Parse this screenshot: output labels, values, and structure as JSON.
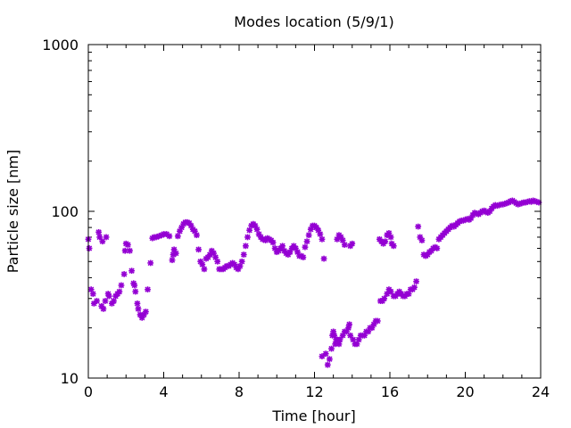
{
  "chart_data": {
    "type": "scatter",
    "title": "Modes location (5/9/1)",
    "xlabel": "Time [hour]",
    "ylabel": "Particle size [nm]",
    "xlim": [
      0,
      24
    ],
    "ylim": [
      10,
      1000
    ],
    "yscale": "log",
    "xticks": [
      0,
      4,
      8,
      12,
      16,
      20,
      24
    ],
    "yticks": [
      10,
      100,
      1000
    ],
    "xtick_labels": [
      "0",
      "4",
      "8",
      "12",
      "16",
      "20",
      "24"
    ],
    "ytick_labels": [
      "10",
      "100",
      "1000"
    ],
    "grid": false,
    "legend": "none",
    "marker_color": "#9400d3",
    "series": [
      {
        "points": [
          [
            0.0,
            68
          ],
          [
            0.05,
            60
          ],
          [
            0.15,
            34
          ],
          [
            0.25,
            32
          ],
          [
            0.3,
            28
          ],
          [
            0.45,
            29
          ],
          [
            0.55,
            75
          ],
          [
            0.6,
            70
          ],
          [
            0.7,
            27
          ],
          [
            0.75,
            66
          ],
          [
            0.8,
            26
          ],
          [
            0.9,
            29
          ],
          [
            0.95,
            70
          ],
          [
            1.05,
            32
          ],
          [
            1.1,
            31
          ],
          [
            1.25,
            28
          ],
          [
            1.35,
            29
          ],
          [
            1.45,
            31
          ],
          [
            1.55,
            32
          ],
          [
            1.65,
            33
          ],
          [
            1.75,
            36
          ],
          [
            1.9,
            42
          ],
          [
            1.95,
            58
          ],
          [
            2.0,
            64
          ],
          [
            2.1,
            63
          ],
          [
            2.2,
            58
          ],
          [
            2.3,
            44
          ],
          [
            2.4,
            37
          ],
          [
            2.45,
            36
          ],
          [
            2.5,
            33
          ],
          [
            2.6,
            28
          ],
          [
            2.65,
            26
          ],
          [
            2.75,
            24
          ],
          [
            2.85,
            23
          ],
          [
            2.95,
            24
          ],
          [
            3.05,
            25
          ],
          [
            3.15,
            34
          ],
          [
            3.3,
            49
          ],
          [
            3.4,
            69
          ],
          [
            3.5,
            70
          ],
          [
            3.6,
            70
          ],
          [
            3.75,
            71
          ],
          [
            3.9,
            72
          ],
          [
            4.0,
            73
          ],
          [
            4.15,
            73
          ],
          [
            4.3,
            71
          ],
          [
            4.45,
            51
          ],
          [
            4.5,
            55
          ],
          [
            4.55,
            59
          ],
          [
            4.65,
            56
          ],
          [
            4.75,
            71
          ],
          [
            4.85,
            76
          ],
          [
            4.95,
            80
          ],
          [
            5.05,
            84
          ],
          [
            5.15,
            86
          ],
          [
            5.25,
            86
          ],
          [
            5.35,
            85
          ],
          [
            5.45,
            82
          ],
          [
            5.55,
            78
          ],
          [
            5.65,
            76
          ],
          [
            5.75,
            72
          ],
          [
            5.85,
            59
          ],
          [
            5.95,
            50
          ],
          [
            6.05,
            48
          ],
          [
            6.15,
            45
          ],
          [
            6.25,
            52
          ],
          [
            6.35,
            53
          ],
          [
            6.45,
            55
          ],
          [
            6.55,
            58
          ],
          [
            6.65,
            56
          ],
          [
            6.75,
            53
          ],
          [
            6.85,
            50
          ],
          [
            6.95,
            45
          ],
          [
            7.05,
            45
          ],
          [
            7.15,
            45
          ],
          [
            7.25,
            46
          ],
          [
            7.35,
            47
          ],
          [
            7.45,
            47
          ],
          [
            7.55,
            48
          ],
          [
            7.65,
            49
          ],
          [
            7.75,
            48
          ],
          [
            7.85,
            46
          ],
          [
            7.95,
            45
          ],
          [
            8.05,
            47
          ],
          [
            8.15,
            50
          ],
          [
            8.25,
            55
          ],
          [
            8.35,
            62
          ],
          [
            8.45,
            70
          ],
          [
            8.55,
            77
          ],
          [
            8.65,
            82
          ],
          [
            8.75,
            84
          ],
          [
            8.85,
            82
          ],
          [
            8.95,
            78
          ],
          [
            9.05,
            73
          ],
          [
            9.15,
            70
          ],
          [
            9.25,
            68
          ],
          [
            9.4,
            67
          ],
          [
            9.5,
            69
          ],
          [
            9.6,
            68
          ],
          [
            9.7,
            67
          ],
          [
            9.8,
            65
          ],
          [
            9.9,
            60
          ],
          [
            10.0,
            57
          ],
          [
            10.1,
            58
          ],
          [
            10.2,
            60
          ],
          [
            10.3,
            62
          ],
          [
            10.4,
            58
          ],
          [
            10.5,
            56
          ],
          [
            10.6,
            55
          ],
          [
            10.7,
            57
          ],
          [
            10.8,
            60
          ],
          [
            10.9,
            62
          ],
          [
            11.0,
            60
          ],
          [
            11.1,
            57
          ],
          [
            11.2,
            54
          ],
          [
            11.3,
            54
          ],
          [
            11.4,
            53
          ],
          [
            11.5,
            61
          ],
          [
            11.6,
            66
          ],
          [
            11.7,
            72
          ],
          [
            11.8,
            78
          ],
          [
            11.9,
            82
          ],
          [
            12.0,
            82
          ],
          [
            12.1,
            80
          ],
          [
            12.2,
            77
          ],
          [
            12.3,
            73
          ],
          [
            12.4,
            68
          ],
          [
            12.5,
            52
          ],
          [
            12.4,
            13.5
          ],
          [
            12.6,
            14
          ],
          [
            12.7,
            12
          ],
          [
            12.8,
            13
          ],
          [
            12.9,
            15
          ],
          [
            12.95,
            18
          ],
          [
            13.0,
            19
          ],
          [
            13.05,
            18
          ],
          [
            13.1,
            16
          ],
          [
            13.15,
            17
          ],
          [
            13.2,
            17
          ],
          [
            13.3,
            16
          ],
          [
            13.35,
            17
          ],
          [
            13.2,
            68
          ],
          [
            13.3,
            72
          ],
          [
            13.4,
            70
          ],
          [
            13.5,
            67
          ],
          [
            13.6,
            63
          ],
          [
            13.5,
            18
          ],
          [
            13.6,
            19
          ],
          [
            13.7,
            19
          ],
          [
            13.8,
            20
          ],
          [
            13.85,
            21
          ],
          [
            13.9,
            18
          ],
          [
            13.9,
            62
          ],
          [
            14.0,
            64
          ],
          [
            14.05,
            17
          ],
          [
            14.15,
            16
          ],
          [
            14.25,
            16
          ],
          [
            14.35,
            17
          ],
          [
            14.45,
            18
          ],
          [
            14.55,
            18
          ],
          [
            14.65,
            18
          ],
          [
            14.75,
            19
          ],
          [
            14.85,
            19
          ],
          [
            14.95,
            20
          ],
          [
            15.05,
            20
          ],
          [
            15.15,
            21
          ],
          [
            15.25,
            22
          ],
          [
            15.35,
            22
          ],
          [
            15.45,
            68
          ],
          [
            15.55,
            66
          ],
          [
            15.65,
            64
          ],
          [
            15.75,
            66
          ],
          [
            15.85,
            72
          ],
          [
            15.95,
            74
          ],
          [
            16.05,
            70
          ],
          [
            16.1,
            64
          ],
          [
            16.2,
            62
          ],
          [
            15.5,
            29
          ],
          [
            15.6,
            29
          ],
          [
            15.7,
            30
          ],
          [
            15.85,
            32
          ],
          [
            15.95,
            34
          ],
          [
            16.05,
            33
          ],
          [
            16.2,
            31
          ],
          [
            16.3,
            31
          ],
          [
            16.4,
            32
          ],
          [
            16.5,
            33
          ],
          [
            16.6,
            32
          ],
          [
            16.7,
            31
          ],
          [
            16.8,
            31
          ],
          [
            16.9,
            32
          ],
          [
            17.0,
            32
          ],
          [
            17.1,
            34
          ],
          [
            17.2,
            34
          ],
          [
            17.3,
            35
          ],
          [
            17.4,
            38
          ],
          [
            17.5,
            81
          ],
          [
            17.6,
            70
          ],
          [
            17.7,
            67
          ],
          [
            17.8,
            55
          ],
          [
            17.9,
            54
          ],
          [
            18.0,
            55
          ],
          [
            18.1,
            57
          ],
          [
            18.2,
            58
          ],
          [
            18.3,
            60
          ],
          [
            18.4,
            61
          ],
          [
            18.5,
            60
          ],
          [
            18.6,
            68
          ],
          [
            18.7,
            70
          ],
          [
            18.8,
            72
          ],
          [
            18.9,
            74
          ],
          [
            19.0,
            76
          ],
          [
            19.1,
            78
          ],
          [
            19.2,
            80
          ],
          [
            19.3,
            82
          ],
          [
            19.4,
            81
          ],
          [
            19.5,
            83
          ],
          [
            19.6,
            85
          ],
          [
            19.7,
            87
          ],
          [
            19.8,
            88
          ],
          [
            19.9,
            88
          ],
          [
            20.0,
            89
          ],
          [
            20.1,
            90
          ],
          [
            20.2,
            89
          ],
          [
            20.3,
            91
          ],
          [
            20.4,
            95
          ],
          [
            20.5,
            98
          ],
          [
            20.6,
            97
          ],
          [
            20.7,
            96
          ],
          [
            20.8,
            98
          ],
          [
            20.9,
            100
          ],
          [
            21.0,
            101
          ],
          [
            21.1,
            99
          ],
          [
            21.2,
            98
          ],
          [
            21.3,
            100
          ],
          [
            21.4,
            104
          ],
          [
            21.5,
            107
          ],
          [
            21.6,
            109
          ],
          [
            21.7,
            108
          ],
          [
            21.8,
            109
          ],
          [
            21.9,
            110
          ],
          [
            22.0,
            110
          ],
          [
            22.1,
            111
          ],
          [
            22.2,
            112
          ],
          [
            22.3,
            113
          ],
          [
            22.4,
            115
          ],
          [
            22.5,
            116
          ],
          [
            22.6,
            114
          ],
          [
            22.7,
            112
          ],
          [
            22.8,
            110
          ],
          [
            22.9,
            111
          ],
          [
            23.0,
            112
          ],
          [
            23.1,
            113
          ],
          [
            23.2,
            113
          ],
          [
            23.3,
            114
          ],
          [
            23.4,
            115
          ],
          [
            23.5,
            114
          ],
          [
            23.6,
            116
          ],
          [
            23.7,
            115
          ],
          [
            23.8,
            114
          ],
          [
            23.9,
            113
          ]
        ]
      }
    ]
  }
}
